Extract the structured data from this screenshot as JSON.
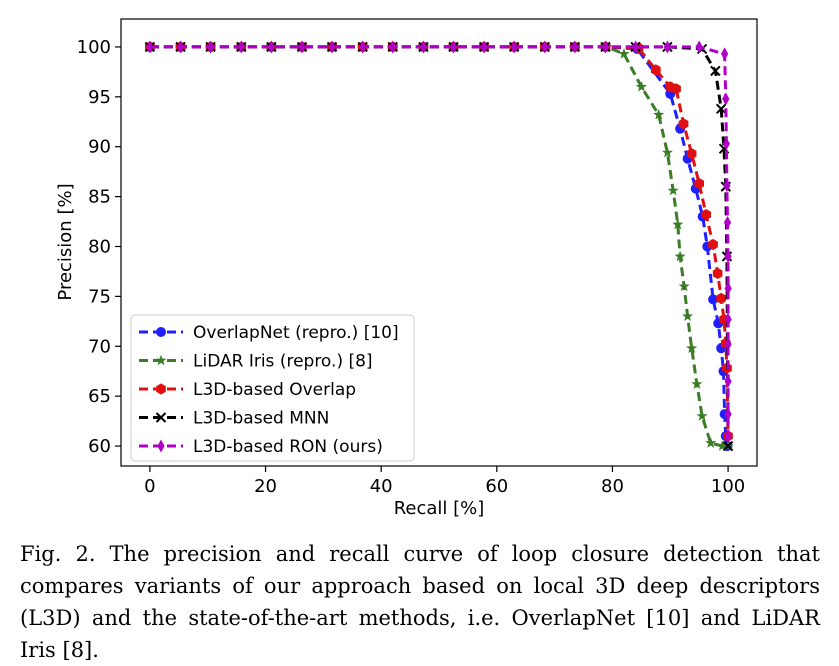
{
  "chart_data": {
    "type": "line",
    "title": "",
    "xlabel": "Recall [%]",
    "ylabel": "Precision [%]",
    "xlim": [
      -5,
      105
    ],
    "ylim": [
      58,
      102.8
    ],
    "xticks": [
      0,
      20,
      40,
      60,
      80,
      100
    ],
    "yticks": [
      60,
      65,
      70,
      75,
      80,
      85,
      90,
      95,
      100
    ],
    "grid": false,
    "legend_position": "lower-left",
    "series": [
      {
        "name": "OverlapNet (repro.) [10]",
        "color": "#1f1fff",
        "marker": "circle",
        "x": [
          0,
          5.3,
          10.5,
          15.8,
          21,
          26.3,
          31.5,
          36.8,
          42,
          47.3,
          52.5,
          57.8,
          63,
          68.3,
          73.5,
          78.8,
          84.3,
          90,
          91.7,
          93,
          94.4,
          95.6,
          96.4,
          97.4,
          98.3,
          98.8,
          99.2,
          99.4,
          99.6,
          99.8,
          99.9
        ],
        "y": [
          100,
          100,
          100,
          100,
          100,
          100,
          100,
          100,
          100,
          100,
          100,
          100,
          100,
          100,
          100,
          100,
          99.8,
          95.3,
          91.8,
          88.8,
          85.8,
          83,
          80,
          74.7,
          72.3,
          69.8,
          67.5,
          63.2,
          61,
          60,
          60
        ]
      },
      {
        "name": "LiDAR Iris (repro.) [8]",
        "color": "#3a7d26",
        "marker": "star",
        "x": [
          0,
          5.3,
          10.5,
          15.8,
          21,
          26.3,
          31.5,
          36.8,
          42,
          47.3,
          52.5,
          57.8,
          63,
          68.3,
          73.5,
          79,
          82,
          85,
          88,
          89.5,
          90.5,
          91.3,
          91.7,
          92.4,
          93,
          93.7,
          94.6,
          95.5,
          97,
          99,
          100
        ],
        "y": [
          100,
          100,
          100,
          100,
          100,
          100,
          100,
          100,
          100,
          100,
          100,
          100,
          100,
          100,
          100,
          100,
          99.3,
          96,
          93.2,
          89.4,
          85.6,
          82.2,
          79,
          76,
          73,
          69.8,
          66.2,
          63,
          60.3,
          60,
          60
        ]
      },
      {
        "name": "L3D-based Overlap",
        "color": "#e01010",
        "marker": "hexagon",
        "x": [
          0,
          5.3,
          10.5,
          15.8,
          21,
          26.3,
          31.5,
          36.8,
          42,
          47.3,
          52.5,
          57.8,
          63,
          68.3,
          73.5,
          78.8,
          84.5,
          87.5,
          90,
          91,
          92.3,
          93.7,
          95,
          96.2,
          97.4,
          98.2,
          98.8,
          99.3,
          99.6,
          99.8,
          100
        ],
        "y": [
          100,
          100,
          100,
          100,
          100,
          100,
          100,
          100,
          100,
          100,
          100,
          100,
          100,
          100,
          100,
          100,
          99.9,
          97.7,
          96,
          95.8,
          92.3,
          89.3,
          86.3,
          83.2,
          80.2,
          77.3,
          74.8,
          72.7,
          70.3,
          67.8,
          61
        ]
      },
      {
        "name": "L3D-based MNN",
        "color": "#000000",
        "marker": "x",
        "x": [
          0,
          5.3,
          10.5,
          15.8,
          21,
          26.3,
          31.5,
          36.8,
          42,
          47.3,
          52.5,
          57.8,
          63,
          68.3,
          73.5,
          78.8,
          84,
          89.5,
          95.5,
          97.8,
          98.8,
          99.3,
          99.6,
          99.8,
          100
        ],
        "y": [
          100,
          100,
          100,
          100,
          100,
          100,
          100,
          100,
          100,
          100,
          100,
          100,
          100,
          100,
          100,
          100,
          100,
          100,
          99.8,
          97.6,
          93.8,
          89.8,
          86,
          79,
          60
        ]
      },
      {
        "name": "L3D-based RON (ours)",
        "color": "#b000c8",
        "marker": "thin_diamond",
        "x": [
          0,
          5.3,
          10.5,
          15.8,
          21,
          26.3,
          31.5,
          36.8,
          42,
          47.3,
          52.5,
          57.8,
          63,
          68.3,
          73.5,
          78.8,
          84,
          89.5,
          95,
          99.4,
          99.6,
          99.7,
          99.8,
          99.9,
          100,
          100,
          100,
          100,
          100,
          100,
          100
        ],
        "y": [
          100,
          100,
          100,
          100,
          100,
          100,
          100,
          100,
          100,
          100,
          100,
          100,
          100,
          100,
          100,
          100,
          100,
          100,
          100,
          99.3,
          94.8,
          90.3,
          86.1,
          82.4,
          79,
          75.8,
          72.7,
          70.2,
          66.5,
          63.2,
          61
        ]
      }
    ]
  },
  "caption": {
    "label": "Fig. 2.",
    "text": "The precision and recall curve of loop closure detection that compares variants of our approach based on local 3D deep descriptors (L3D) and the state-of-the-art methods, i.e. OverlapNet [10] and LiDAR Iris [8]."
  }
}
